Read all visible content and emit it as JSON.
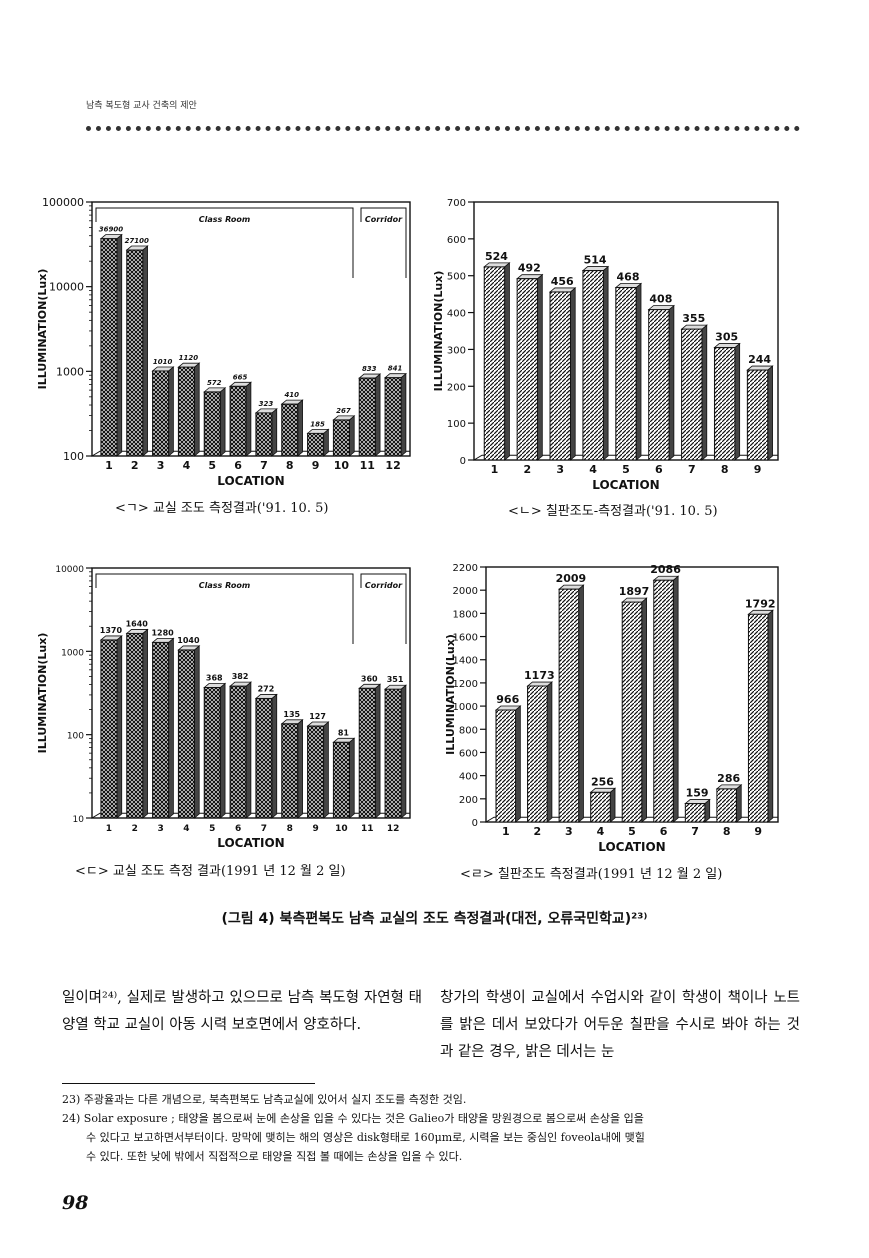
{
  "running_head": "남측 복도형 교사 건축의 제안",
  "figure_caption": "(그림 4) 북측편복도 남측 교실의 조도 측정결과(대전, 오류국민학교)²³⁾",
  "chart_data": [
    {
      "type": "bar",
      "scale": "log",
      "ylim": [
        100,
        100000
      ],
      "yticks": [
        "100000",
        "10000",
        "1000",
        "100"
      ],
      "ylabel": "ILLUMINATION(Lux)",
      "xlabel": "LOCATION",
      "categories": [
        "1",
        "2",
        "3",
        "4",
        "5",
        "6",
        "7",
        "8",
        "9",
        "10",
        "11",
        "12"
      ],
      "values": [
        36900,
        27100,
        1010,
        1120,
        572,
        665,
        323,
        410,
        185,
        267,
        833,
        841
      ],
      "value_labels": [
        "36900",
        "27100",
        "1010",
        "1120",
        "572",
        "665",
        "323",
        "410",
        "185",
        "267",
        "833",
        "841"
      ],
      "regions": [
        {
          "label": "Class Room",
          "from": 1,
          "to": 10
        },
        {
          "label": "Corridor",
          "from": 11,
          "to": 12
        }
      ],
      "pattern": "cross",
      "caption": "<ㄱ> 교실 조도 측정결과('91. 10. 5)"
    },
    {
      "type": "bar",
      "scale": "linear",
      "ylim": [
        0,
        700
      ],
      "yticks": [
        "0",
        "100",
        "200",
        "300",
        "400",
        "500",
        "600",
        "700"
      ],
      "ylabel": "ILLUMINATION(Lux)",
      "xlabel": "LOCATION",
      "categories": [
        "1",
        "2",
        "3",
        "4",
        "5",
        "6",
        "7",
        "8",
        "9"
      ],
      "values": [
        524,
        492,
        456,
        514,
        468,
        408,
        355,
        305,
        244
      ],
      "value_labels": [
        "524",
        "492",
        "456",
        "514",
        "468",
        "408",
        "355",
        "305",
        "244"
      ],
      "pattern": "diag",
      "caption": "<ㄴ> 칠판조도-측정결과('91. 10. 5)"
    },
    {
      "type": "bar",
      "scale": "log",
      "ylim": [
        10,
        10000
      ],
      "yticks": [
        "10000",
        "1000",
        "100",
        "10"
      ],
      "ylabel": "ILLUMINATION(Lux)",
      "xlabel": "LOCATION",
      "categories": [
        "1",
        "2",
        "3",
        "4",
        "5",
        "6",
        "7",
        "8",
        "9",
        "10",
        "11",
        "12"
      ],
      "values": [
        1370,
        1640,
        1280,
        1040,
        368,
        382,
        272,
        135,
        127,
        81,
        360,
        351
      ],
      "value_labels": [
        "1370",
        "1640",
        "1280",
        "1040",
        "368",
        "382",
        "272",
        "135",
        "127",
        "81",
        "360",
        "351"
      ],
      "regions": [
        {
          "label": "Class Room",
          "from": 1,
          "to": 10
        },
        {
          "label": "Corridor",
          "from": 11,
          "to": 12
        }
      ],
      "pattern": "cross",
      "caption": "<ㄷ> 교실 조도 측정 결과(1991 년 12 월 2 일)"
    },
    {
      "type": "bar",
      "scale": "linear",
      "ylim": [
        0,
        2200
      ],
      "yticks": [
        "0",
        "200",
        "400",
        "600",
        "800",
        "1000",
        "1200",
        "1400",
        "1600",
        "1800",
        "2000",
        "2200"
      ],
      "ylabel": "ILLUMINATION(Lux)",
      "xlabel": "LOCATION",
      "categories": [
        "1",
        "2",
        "3",
        "4",
        "5",
        "6",
        "7",
        "8",
        "9"
      ],
      "values": [
        966,
        1173,
        2009,
        256,
        1897,
        2086,
        159,
        286,
        1792
      ],
      "value_labels": [
        "966",
        "1173",
        "2009",
        "256",
        "1897",
        "2086",
        "159",
        "286",
        "1792"
      ],
      "pattern": "diag",
      "caption": "<ㄹ> 칠판조도 측정결과(1991 년 12 월 2 일)"
    }
  ],
  "body": {
    "left": "일이며²⁴⁾, 실제로 발생하고 있으므로 남측 복도형 자연형 태양열 학교 교실이 아동 시력 보호면에서 양호하다.",
    "right": "창가의 학생이 교실에서 수업시와 같이 학생이 책이나 노트를 밝은 데서 보았다가 어두운 칠판을 수시로 봐야 하는 것과 같은 경우, 밝은 데서는 눈"
  },
  "footnotes": {
    "fn23": "23) 주광율과는 다른 개념으로, 북측편복도 남측교실에 있어서 실지 조도를 측정한 것임.",
    "fn24_line1": "24) Solar exposure ; 태양을 봄으로써 눈에 손상을 입을 수 있다는 것은 Galieo가 태양을 망원경으로 봄으로써 손상을 입을",
    "fn24_line2": "수 있다고 보고하면서부터이다. 망막에 맺히는 해의 영상은 disk형태로 160μm로, 시력을 보는 중심인 foveola내에 맺힐",
    "fn24_line3": "수 있다. 또한 낮에 밖에서 직접적으로 태양을 직접 볼 때에는 손상을 입을 수 있다."
  },
  "page_number": "98"
}
